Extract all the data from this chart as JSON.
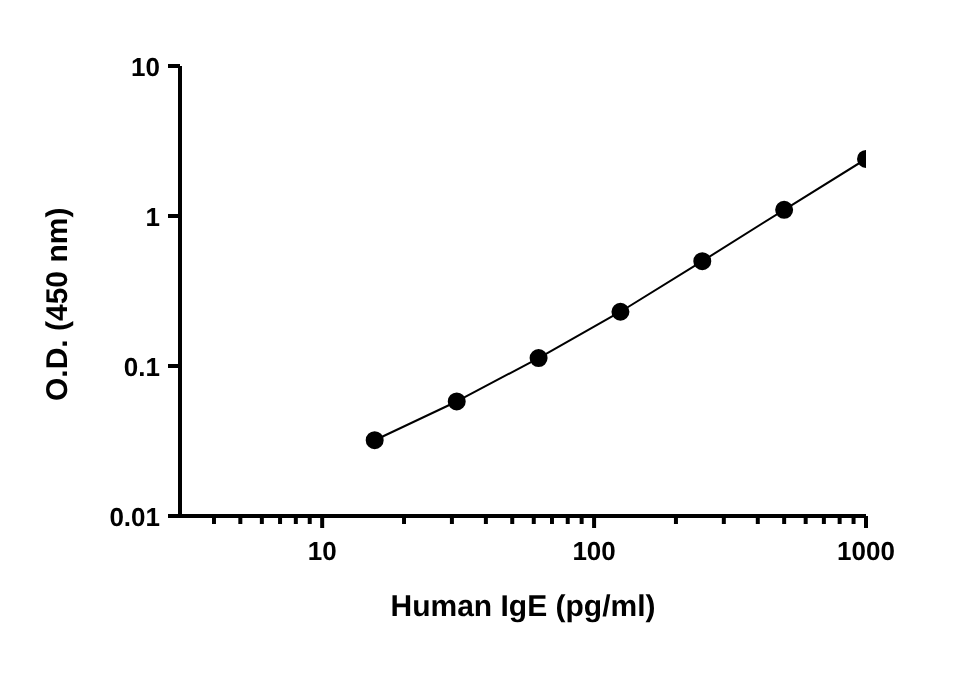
{
  "chart_data": {
    "type": "line",
    "xlabel": "Human IgE (pg/ml)",
    "ylabel": "O.D. (450 nm)",
    "log": "xy",
    "x": [
      15.6,
      31.25,
      62.5,
      125,
      250,
      500,
      1000
    ],
    "series": [
      {
        "color": "#000000",
        "values": [
          0.032,
          0.058,
          0.113,
          0.23,
          0.5,
          1.1,
          2.4
        ]
      }
    ],
    "xlim": [
      3,
      1000
    ],
    "xticks": [
      {
        "value": 4,
        "label": null
      },
      {
        "value": 5,
        "label": null
      },
      {
        "value": 6,
        "label": null
      },
      {
        "value": 7,
        "label": null
      },
      {
        "value": 8,
        "label": null
      },
      {
        "value": 9,
        "label": null
      },
      10,
      {
        "value": 20,
        "label": null
      },
      {
        "value": 30,
        "label": null
      },
      {
        "value": 40,
        "label": null
      },
      {
        "value": 50,
        "label": null
      },
      {
        "value": 60,
        "label": null
      },
      {
        "value": 70,
        "label": null
      },
      {
        "value": 80,
        "label": null
      },
      {
        "value": 90,
        "label": null
      },
      100,
      {
        "value": 200,
        "label": null
      },
      {
        "value": 300,
        "label": null
      },
      {
        "value": 400,
        "label": null
      },
      {
        "value": 500,
        "label": null
      },
      {
        "value": 600,
        "label": null
      },
      {
        "value": 700,
        "label": null
      },
      {
        "value": 800,
        "label": null
      },
      {
        "value": 900,
        "label": null
      },
      1000
    ],
    "ylim": [
      0.01,
      10
    ],
    "yticks": [
      0.01,
      0.1,
      1,
      10
    ],
    "grid": false,
    "legend": false,
    "marker": "circle",
    "line_style": "solid"
  }
}
